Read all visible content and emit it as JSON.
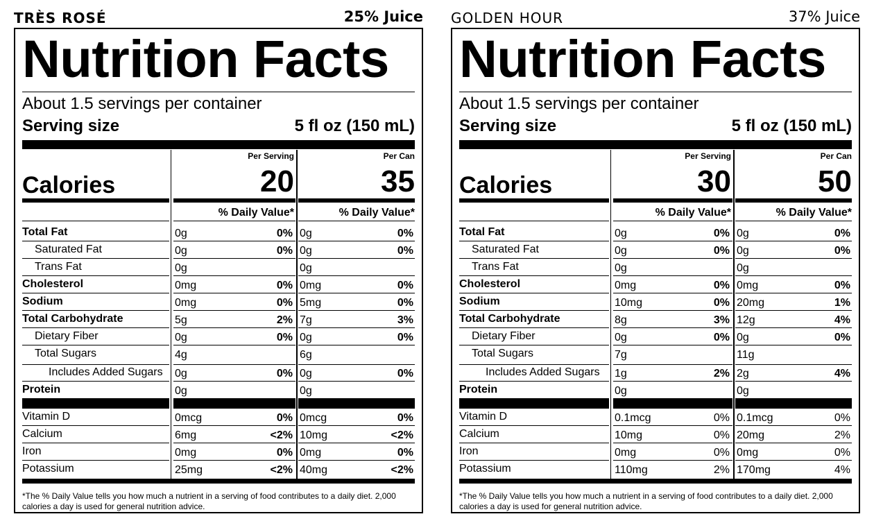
{
  "panels": [
    {
      "name": "TRÈS ROSÉ",
      "juice": "25% Juice",
      "title": "Nutrition Facts",
      "servings": "About 1.5 servings per container",
      "serving_size_label": "Serving size",
      "serving_size_value": "5 fl oz (150 mL)",
      "calories_label": "Calories",
      "col1_head": "Per Serving",
      "col2_head": "Per Can",
      "calories_serving": "20",
      "calories_can": "35",
      "dv_head": "% Daily Value*",
      "nutrients": [
        {
          "name": "Total Fat",
          "a1": "0g",
          "d1": "0%",
          "a2": "0g",
          "d2": "0%"
        },
        {
          "name": "Saturated Fat",
          "a1": "0g",
          "d1": "0%",
          "a2": "0g",
          "d2": "0%"
        },
        {
          "name": "Trans Fat",
          "a1": "0g",
          "d1": "",
          "a2": "0g",
          "d2": ""
        },
        {
          "name": "Cholesterol",
          "a1": "0mg",
          "d1": "0%",
          "a2": "0mg",
          "d2": "0%"
        },
        {
          "name": "Sodium",
          "a1": "0mg",
          "d1": "0%",
          "a2": "5mg",
          "d2": "0%"
        },
        {
          "name": "Total Carbohydrate",
          "a1": "5g",
          "d1": "2%",
          "a2": "7g",
          "d2": "3%"
        },
        {
          "name": "Dietary Fiber",
          "a1": "0g",
          "d1": "0%",
          "a2": "0g",
          "d2": "0%"
        },
        {
          "name": "Total Sugars",
          "a1": "4g",
          "d1": "",
          "a2": "6g",
          "d2": ""
        },
        {
          "name": "Includes Added Sugars",
          "a1": "0g",
          "d1": "0%",
          "a2": "0g",
          "d2": "0%"
        },
        {
          "name": "Protein",
          "a1": "0g",
          "d1": "",
          "a2": "0g",
          "d2": ""
        }
      ],
      "vitamins": [
        {
          "name": "Vitamin D",
          "a1": "0mcg",
          "d1": "0%",
          "a2": "0mcg",
          "d2": "0%"
        },
        {
          "name": "Calcium",
          "a1": "6mg",
          "d1": "<2%",
          "a2": "10mg",
          "d2": "<2%"
        },
        {
          "name": "Iron",
          "a1": "0mg",
          "d1": "0%",
          "a2": "0mg",
          "d2": "0%"
        },
        {
          "name": "Potassium",
          "a1": "25mg",
          "d1": "<2%",
          "a2": "40mg",
          "d2": "<2%"
        }
      ],
      "footnote": "*The % Daily Value tells you how much a nutrient in a serving of food contributes to a daily diet. 2,000 calories a day is used for general nutrition advice."
    },
    {
      "name": "GOLDEN HOUR",
      "juice": "37% Juice",
      "title": "Nutrition Facts",
      "servings": "About 1.5 servings per container",
      "serving_size_label": "Serving size",
      "serving_size_value": "5 fl oz (150 mL)",
      "calories_label": "Calories",
      "col1_head": "Per Serving",
      "col2_head": "Per Can",
      "calories_serving": "30",
      "calories_can": "50",
      "dv_head": "% Daily Value*",
      "nutrients": [
        {
          "name": "Total Fat",
          "a1": "0g",
          "d1": "0%",
          "a2": "0g",
          "d2": "0%"
        },
        {
          "name": "Saturated Fat",
          "a1": "0g",
          "d1": "0%",
          "a2": "0g",
          "d2": "0%"
        },
        {
          "name": "Trans Fat",
          "a1": "0g",
          "d1": "",
          "a2": "0g",
          "d2": ""
        },
        {
          "name": "Cholesterol",
          "a1": "0mg",
          "d1": "0%",
          "a2": "0mg",
          "d2": "0%"
        },
        {
          "name": "Sodium",
          "a1": "10mg",
          "d1": "0%",
          "a2": "20mg",
          "d2": "1%"
        },
        {
          "name": "Total Carbohydrate",
          "a1": "8g",
          "d1": "3%",
          "a2": "12g",
          "d2": "4%"
        },
        {
          "name": "Dietary Fiber",
          "a1": "0g",
          "d1": "0%",
          "a2": "0g",
          "d2": "0%"
        },
        {
          "name": "Total Sugars",
          "a1": "7g",
          "d1": "",
          "a2": "11g",
          "d2": ""
        },
        {
          "name": "Includes Added Sugars",
          "a1": "1g",
          "d1": "2%",
          "a2": "2g",
          "d2": "4%"
        },
        {
          "name": "Protein",
          "a1": "0g",
          "d1": "",
          "a2": "0g",
          "d2": ""
        }
      ],
      "vitamins": [
        {
          "name": "Vitamin D",
          "a1": "0.1mcg",
          "d1": "0%",
          "a2": "0.1mcg",
          "d2": "0%"
        },
        {
          "name": "Calcium",
          "a1": "10mg",
          "d1": "0%",
          "a2": "20mg",
          "d2": "2%"
        },
        {
          "name": "Iron",
          "a1": "0mg",
          "d1": "0%",
          "a2": "0mg",
          "d2": "0%"
        },
        {
          "name": "Potassium",
          "a1": "110mg",
          "d1": "2%",
          "a2": "170mg",
          "d2": "4%"
        }
      ],
      "footnote": "*The % Daily Value tells you how much a nutrient in a serving of food contributes to a daily diet. 2,000 calories a day is used for general nutrition advice."
    }
  ]
}
